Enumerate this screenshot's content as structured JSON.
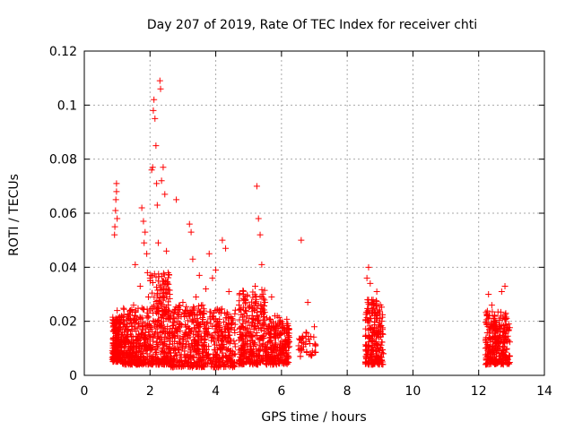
{
  "chart_data": {
    "type": "scatter",
    "title": "Day 207 of 2019, Rate Of TEC Index for receiver chti",
    "xlabel": "GPS time / hours",
    "ylabel": "ROTI / TECUs",
    "xlim": [
      0,
      14
    ],
    "ylim": [
      0,
      0.12
    ],
    "xticks": [
      0,
      2,
      4,
      6,
      8,
      10,
      12,
      14
    ],
    "xtick_labels": [
      "0",
      "2",
      "4",
      "6",
      "8",
      "10",
      "12",
      "14"
    ],
    "yticks": [
      0,
      0.02,
      0.04,
      0.06,
      0.08,
      0.1,
      0.12
    ],
    "ytick_labels": [
      "0",
      "0.02",
      "0.04",
      "0.06",
      "0.08",
      "0.1",
      "0.12"
    ],
    "grid": true,
    "marker": "plus",
    "color": "#ff0000",
    "series": [
      {
        "name": "ROTI",
        "points": [
          [
            0.9,
            0.012
          ],
          [
            0.9,
            0.019
          ],
          [
            0.92,
            0.052
          ],
          [
            0.93,
            0.055
          ],
          [
            0.95,
            0.061
          ],
          [
            0.96,
            0.065
          ],
          [
            0.98,
            0.068
          ],
          [
            0.98,
            0.071
          ],
          [
            1.0,
            0.058
          ],
          [
            1.0,
            0.024
          ],
          [
            1.02,
            0.009
          ],
          [
            1.05,
            0.014
          ],
          [
            1.1,
            0.011
          ],
          [
            1.15,
            0.016
          ],
          [
            1.2,
            0.008
          ],
          [
            1.25,
            0.018
          ],
          [
            1.3,
            0.013
          ],
          [
            1.35,
            0.021
          ],
          [
            1.4,
            0.01
          ],
          [
            1.45,
            0.017
          ],
          [
            1.5,
            0.026
          ],
          [
            1.55,
            0.041
          ],
          [
            1.6,
            0.012
          ],
          [
            1.65,
            0.019
          ],
          [
            1.7,
            0.033
          ],
          [
            1.75,
            0.062
          ],
          [
            1.8,
            0.057
          ],
          [
            1.82,
            0.049
          ],
          [
            1.85,
            0.053
          ],
          [
            1.9,
            0.045
          ],
          [
            1.92,
            0.038
          ],
          [
            1.95,
            0.029
          ],
          [
            2.0,
            0.036
          ],
          [
            2.05,
            0.076
          ],
          [
            2.08,
            0.077
          ],
          [
            2.1,
            0.098
          ],
          [
            2.12,
            0.102
          ],
          [
            2.15,
            0.095
          ],
          [
            2.18,
            0.085
          ],
          [
            2.2,
            0.071
          ],
          [
            2.22,
            0.063
          ],
          [
            2.25,
            0.049
          ],
          [
            2.3,
            0.109
          ],
          [
            2.32,
            0.106
          ],
          [
            2.35,
            0.072
          ],
          [
            2.4,
            0.077
          ],
          [
            2.45,
            0.067
          ],
          [
            2.5,
            0.046
          ],
          [
            2.55,
            0.038
          ],
          [
            2.6,
            0.03
          ],
          [
            2.7,
            0.023
          ],
          [
            2.8,
            0.065
          ],
          [
            2.9,
            0.018
          ],
          [
            3.0,
            0.027
          ],
          [
            3.1,
            0.022
          ],
          [
            3.2,
            0.056
          ],
          [
            3.25,
            0.053
          ],
          [
            3.3,
            0.043
          ],
          [
            3.4,
            0.029
          ],
          [
            3.5,
            0.037
          ],
          [
            3.6,
            0.026
          ],
          [
            3.7,
            0.032
          ],
          [
            3.8,
            0.045
          ],
          [
            3.9,
            0.036
          ],
          [
            4.0,
            0.039
          ],
          [
            4.1,
            0.024
          ],
          [
            4.2,
            0.05
          ],
          [
            4.3,
            0.047
          ],
          [
            4.4,
            0.031
          ],
          [
            4.5,
            0.021
          ],
          [
            4.8,
            0.018
          ],
          [
            4.9,
            0.024
          ],
          [
            5.0,
            0.016
          ],
          [
            5.1,
            0.021
          ],
          [
            5.2,
            0.033
          ],
          [
            5.25,
            0.07
          ],
          [
            5.3,
            0.058
          ],
          [
            5.35,
            0.052
          ],
          [
            5.4,
            0.041
          ],
          [
            5.5,
            0.027
          ],
          [
            5.6,
            0.018
          ],
          [
            5.7,
            0.029
          ],
          [
            5.8,
            0.022
          ],
          [
            5.9,
            0.014
          ],
          [
            6.0,
            0.019
          ],
          [
            6.1,
            0.017
          ],
          [
            6.2,
            0.013
          ],
          [
            6.6,
            0.05
          ],
          [
            6.65,
            0.014
          ],
          [
            6.8,
            0.027
          ],
          [
            7.0,
            0.018
          ],
          [
            8.6,
            0.036
          ],
          [
            8.65,
            0.04
          ],
          [
            8.7,
            0.034
          ],
          [
            8.8,
            0.026
          ],
          [
            8.9,
            0.031
          ],
          [
            9.0,
            0.018
          ],
          [
            12.3,
            0.03
          ],
          [
            12.4,
            0.026
          ],
          [
            12.5,
            0.018
          ],
          [
            12.7,
            0.031
          ],
          [
            12.8,
            0.033
          ],
          [
            12.85,
            0.021
          ]
        ]
      }
    ],
    "clusters": [
      {
        "x_range": [
          0.85,
          1.15
        ],
        "y_range": [
          0.005,
          0.022
        ],
        "count": 180
      },
      {
        "x_range": [
          1.15,
          2.0
        ],
        "y_range": [
          0.004,
          0.025
        ],
        "count": 320
      },
      {
        "x_range": [
          2.0,
          2.6
        ],
        "y_range": [
          0.004,
          0.038
        ],
        "count": 260
      },
      {
        "x_range": [
          2.6,
          3.6
        ],
        "y_range": [
          0.003,
          0.026
        ],
        "count": 320
      },
      {
        "x_range": [
          3.6,
          4.6
        ],
        "y_range": [
          0.003,
          0.025
        ],
        "count": 280
      },
      {
        "x_range": [
          4.7,
          5.5
        ],
        "y_range": [
          0.004,
          0.032
        ],
        "count": 300
      },
      {
        "x_range": [
          5.5,
          6.25
        ],
        "y_range": [
          0.004,
          0.022
        ],
        "count": 240
      },
      {
        "x_range": [
          6.5,
          7.05
        ],
        "y_range": [
          0.007,
          0.016
        ],
        "count": 40
      },
      {
        "x_range": [
          8.55,
          9.1
        ],
        "y_range": [
          0.004,
          0.028
        ],
        "count": 240
      },
      {
        "x_range": [
          12.2,
          12.95
        ],
        "y_range": [
          0.004,
          0.024
        ],
        "count": 280
      }
    ]
  }
}
